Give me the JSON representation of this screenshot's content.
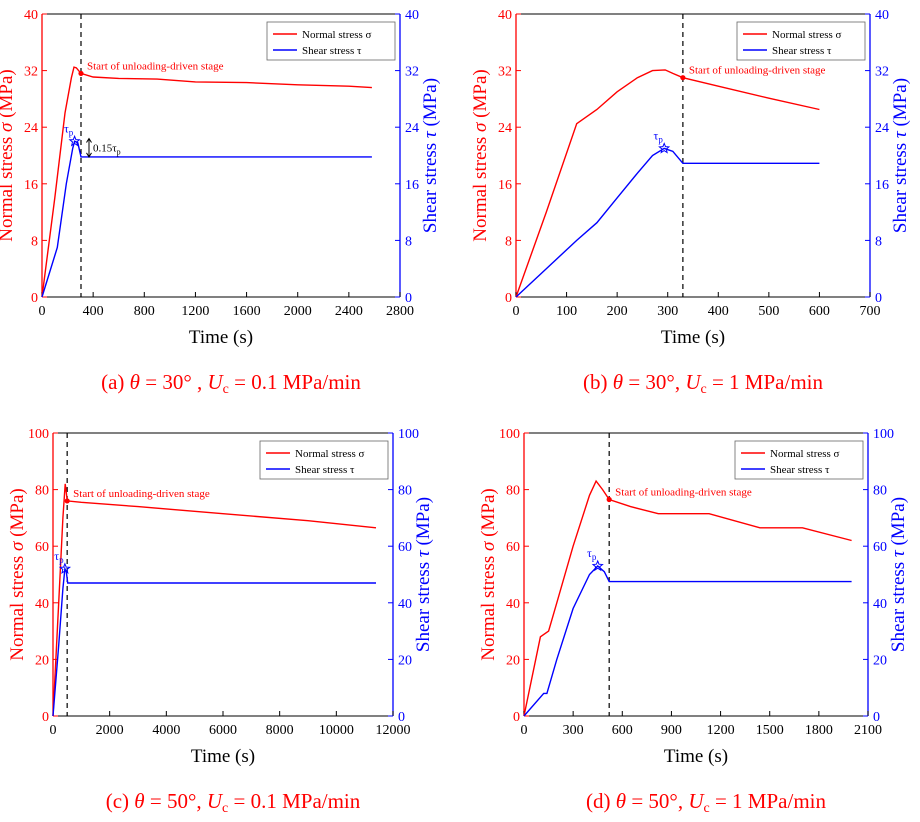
{
  "colors": {
    "normal": "#ff0000",
    "shear": "#0000ff",
    "axis": "#000000"
  },
  "chart_data": [
    {
      "type": "line",
      "panel_label": "(a) θ = 30°  , Uc = 0.1 MPa/min",
      "caption": {
        "prefix": "(a) ",
        "theta_sym": "θ",
        "theta_val": " = 30°  , ",
        "u_sym": "U",
        "u_sub": "c",
        "u_val": " = 0.1 MPa/min"
      },
      "xlabel": "Time (s)",
      "ylabel_left": {
        "base": "Normal stress ",
        "sym": "σ",
        "unit": " (MPa)"
      },
      "ylabel_right": {
        "base": "Shear stress ",
        "sym": "τ",
        "unit": " (MPa)"
      },
      "xlim": [
        0,
        2800
      ],
      "ylim": [
        0,
        40
      ],
      "xticks": [
        0,
        400,
        800,
        1200,
        1600,
        2000,
        2400,
        2800
      ],
      "yticks": [
        0,
        8,
        16,
        24,
        32,
        40
      ],
      "legend": {
        "position": "top-right",
        "normal": "Normal stress σ",
        "shear": "Shear stress τ"
      },
      "unload_time": 305,
      "annotation": "Start of unloading-driven stage",
      "annotation_point": [
        305,
        31.6
      ],
      "peak_label": {
        "base": "τ",
        "sub": "p"
      },
      "peak_point": [
        255,
        22
      ],
      "drop_label": {
        "base": "0.15τ",
        "sub": "p"
      },
      "drop_range": [
        19.8,
        22.4
      ],
      "series": [
        {
          "name": "Normal stress σ",
          "x": [
            0,
            100,
            180,
            230,
            250,
            268,
            305,
            400,
            600,
            900,
            1200,
            1600,
            2000,
            2400,
            2580
          ],
          "y": [
            0,
            14,
            26,
            31,
            32.5,
            32.4,
            31.6,
            31.1,
            30.9,
            30.8,
            30.4,
            30.3,
            30,
            29.8,
            29.6
          ]
        },
        {
          "name": "Shear stress τ",
          "x": [
            0,
            120,
            190,
            240,
            255,
            280,
            305,
            400,
            800,
            1200,
            1600,
            2000,
            2400,
            2580
          ],
          "y": [
            0,
            7,
            16,
            21,
            22,
            21.8,
            19.8,
            19.8,
            19.8,
            19.8,
            19.8,
            19.8,
            19.8,
            19.8
          ]
        }
      ]
    },
    {
      "type": "line",
      "panel_label": "(b) θ = 30°, Uc = 1 MPa/min",
      "caption": {
        "prefix": "(b) ",
        "theta_sym": "θ",
        "theta_val": " = 30°, ",
        "u_sym": "U",
        "u_sub": "c",
        "u_val": " = 1 MPa/min"
      },
      "xlabel": "Time (s)",
      "ylabel_left": {
        "base": "Normal stress ",
        "sym": "σ",
        "unit": " (MPa)"
      },
      "ylabel_right": {
        "base": "Shear stress ",
        "sym": "τ",
        "unit": " (MPa)"
      },
      "xlim": [
        0,
        700
      ],
      "ylim": [
        0,
        40
      ],
      "xticks": [
        0,
        100,
        200,
        300,
        400,
        500,
        600,
        700
      ],
      "yticks": [
        0,
        8,
        16,
        24,
        32,
        40
      ],
      "legend": {
        "position": "top-right",
        "normal": "Normal stress σ",
        "shear": "Shear stress τ"
      },
      "unload_time": 330,
      "annotation": "Start of unloading-driven stage",
      "annotation_point": [
        330,
        31
      ],
      "peak_label": {
        "base": "τ",
        "sub": "p"
      },
      "peak_point": [
        293,
        21
      ],
      "series": [
        {
          "name": "Normal stress σ",
          "x": [
            0,
            60,
            120,
            160,
            200,
            240,
            270,
            295,
            310,
            330,
            400,
            500,
            600
          ],
          "y": [
            0,
            12,
            24.5,
            26.5,
            29,
            31,
            32,
            32.1,
            31.6,
            31,
            29.8,
            28.1,
            26.5
          ]
        },
        {
          "name": "Shear stress τ",
          "x": [
            0,
            60,
            120,
            160,
            200,
            240,
            270,
            293,
            310,
            330,
            400,
            500,
            600
          ],
          "y": [
            0,
            4,
            8,
            10.5,
            14,
            17.5,
            20,
            21,
            20.6,
            18.9,
            18.9,
            18.9,
            18.9
          ]
        }
      ]
    },
    {
      "type": "line",
      "panel_label": "(c) θ = 50°, Uc = 0.1 MPa/min",
      "caption": {
        "prefix": "(c) ",
        "theta_sym": "θ",
        "theta_val": " = 50°, ",
        "u_sym": "U",
        "u_sub": "c",
        "u_val": " = 0.1 MPa/min"
      },
      "xlabel": "Time (s)",
      "ylabel_left": {
        "base": "Normal stress ",
        "sym": "σ",
        "unit": " (MPa)"
      },
      "ylabel_right": {
        "base": "Shear stress ",
        "sym": "τ",
        "unit": " (MPa)"
      },
      "xlim": [
        0,
        12000
      ],
      "ylim": [
        0,
        100
      ],
      "xticks": [
        0,
        2000,
        4000,
        6000,
        8000,
        10000,
        12000
      ],
      "yticks": [
        0,
        20,
        40,
        60,
        80,
        100
      ],
      "legend": {
        "position": "top-right",
        "normal": "Normal stress σ",
        "shear": "Shear stress τ"
      },
      "unload_time": 500,
      "annotation": "Start of unloading-driven stage",
      "annotation_point": [
        500,
        76
      ],
      "peak_label": {
        "base": "τ",
        "sub": "p"
      },
      "peak_point": [
        420,
        52
      ],
      "series": [
        {
          "name": "Normal stress σ",
          "x": [
            0,
            200,
            350,
            430,
            470,
            500,
            1000,
            3000,
            6000,
            9000,
            11400
          ],
          "y": [
            0,
            40,
            70,
            82,
            79,
            76,
            75.5,
            74,
            71.5,
            69,
            66.5
          ]
        },
        {
          "name": "Shear stress τ",
          "x": [
            0,
            200,
            350,
            420,
            470,
            520,
            1000,
            4000,
            8000,
            11400
          ],
          "y": [
            0,
            25,
            45,
            52,
            51,
            47,
            47,
            47,
            47,
            47
          ]
        }
      ]
    },
    {
      "type": "line",
      "panel_label": "(d) θ = 50°, Uc = 1 MPa/min",
      "caption": {
        "prefix": "(d) ",
        "theta_sym": "θ",
        "theta_val": " = 50°, ",
        "u_sym": "U",
        "u_sub": "c",
        "u_val": " = 1 MPa/min"
      },
      "xlabel": "Time (s)",
      "ylabel_left": {
        "base": "Normal stress ",
        "sym": "σ",
        "unit": " (MPa)"
      },
      "ylabel_right": {
        "base": "Shear stress ",
        "sym": "τ",
        "unit": " (MPa)"
      },
      "xlim": [
        0,
        2100
      ],
      "ylim": [
        0,
        100
      ],
      "xticks": [
        0,
        300,
        600,
        900,
        1200,
        1500,
        1800,
        2100
      ],
      "yticks": [
        0,
        20,
        40,
        60,
        80,
        100
      ],
      "legend": {
        "position": "top-right",
        "normal": "Normal stress σ",
        "shear": "Shear stress τ"
      },
      "unload_time": 520,
      "annotation": "Start of unloading-driven stage",
      "annotation_point": [
        520,
        76.5
      ],
      "peak_label": {
        "base": "τ",
        "sub": "p"
      },
      "peak_point": [
        450,
        53
      ],
      "series": [
        {
          "name": "Normal stress σ",
          "x": [
            0,
            100,
            150,
            200,
            300,
            400,
            440,
            480,
            520,
            650,
            820,
            1130,
            1440,
            1700,
            2000
          ],
          "y": [
            0,
            28,
            30,
            40,
            60,
            78,
            83,
            80,
            76.5,
            74,
            71.5,
            71.5,
            66.5,
            66.5,
            62
          ]
        },
        {
          "name": "Shear stress τ",
          "x": [
            0,
            120,
            140,
            200,
            300,
            400,
            450,
            490,
            520,
            800,
            1200,
            1600,
            2000
          ],
          "y": [
            0,
            8,
            8,
            20,
            38,
            50,
            53,
            51,
            47.5,
            47.5,
            47.5,
            47.5,
            47.5
          ]
        }
      ]
    }
  ]
}
